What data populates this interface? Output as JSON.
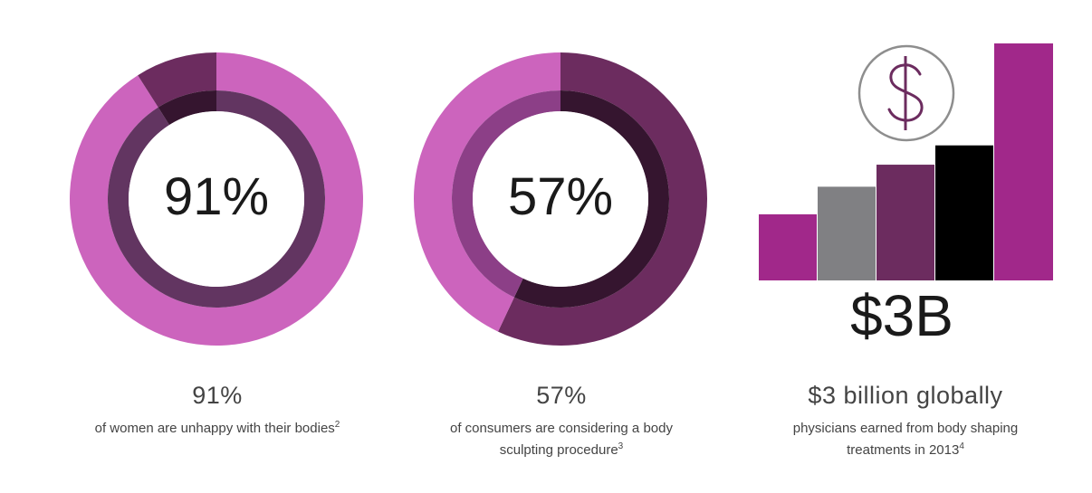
{
  "colors": {
    "pink": "#cc64bd",
    "deep_purple": "#6c2c5f",
    "plum_inner": "#623561",
    "dark_inner": "#35152f",
    "mauve_inner": "#8c3f87",
    "magenta": "#a1288a",
    "gray": "#808083",
    "black": "#000000",
    "dollar_stroke": "#6c2c5f",
    "dollar_circle": "#8e8e8e"
  },
  "panels": [
    {
      "big_text": "91%",
      "stat": "91%",
      "desc_line1": "of women are unhappy with their bodies",
      "desc_line2": "",
      "footnote": "2"
    },
    {
      "big_text": "57%",
      "stat": "57%",
      "desc_line1": "of consumers are considering a body",
      "desc_line2": "sculpting procedure",
      "footnote": "3"
    },
    {
      "big_text": "$3B",
      "stat": "$3 billion globally",
      "desc_line1": "physicians earned from body shaping",
      "desc_line2": "treatments in 2013",
      "footnote": "4"
    }
  ],
  "dollar_icon": "dollar-sign-icon",
  "chart_data": [
    {
      "type": "pie",
      "subtype": "donut",
      "values": [
        91,
        9
      ],
      "center_label": "91%"
    },
    {
      "type": "pie",
      "subtype": "donut",
      "values": [
        57,
        43
      ],
      "center_label": "57%"
    },
    {
      "type": "bar",
      "values": [
        1.2,
        1.7,
        2.1,
        2.45,
        4.3
      ],
      "bar_colors": [
        "#a1288a",
        "#808083",
        "#6c2c5f",
        "#000000",
        "#a1288a"
      ],
      "center_label": "$3B"
    }
  ]
}
